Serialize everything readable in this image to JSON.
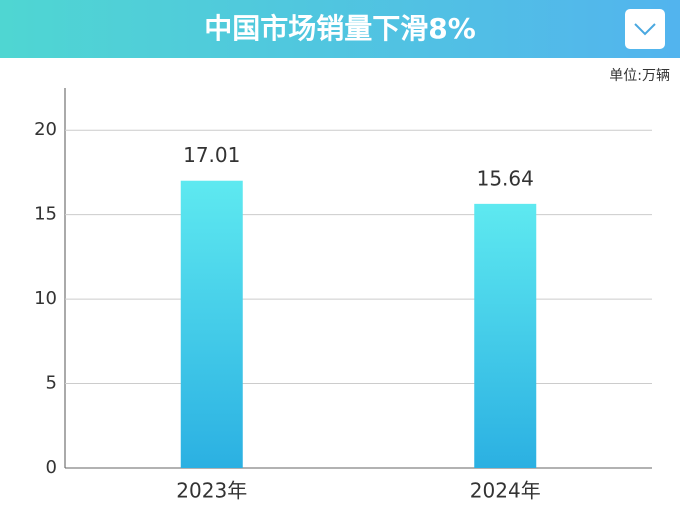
{
  "chart_data": {
    "type": "bar",
    "title": "中国市场销量下滑8%",
    "unit": "单位:万辆",
    "categories": [
      "2023年",
      "2024年"
    ],
    "values": [
      17.01,
      15.64
    ],
    "ylim": [
      0,
      22.5
    ],
    "yticks": [
      0,
      5,
      10,
      15,
      20
    ],
    "grid": true
  }
}
